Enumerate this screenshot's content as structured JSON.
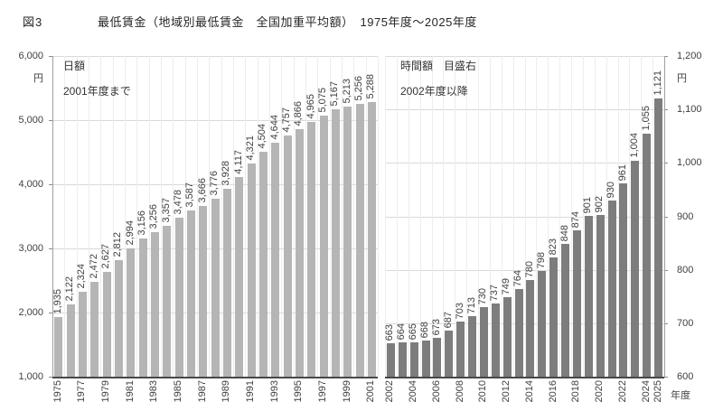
{
  "figure": {
    "fig_label": "図3",
    "title": "最低賃金（地域別最低賃金　全国加重平均額）　1975年度～2025年度",
    "unit_label": "円",
    "x_axis_title": "年度"
  },
  "chart_data": [
    {
      "type": "bar",
      "series_name": "日額（2001年度まで）",
      "legend": [
        "日額",
        "2001年度まで"
      ],
      "axis_side": "left",
      "ylabel": "円",
      "ylim": [
        1000,
        6000
      ],
      "ytick_step": 1000,
      "bar_color": "#b5b5b5",
      "grid": true,
      "years": [
        1975,
        1976,
        1977,
        1978,
        1979,
        1980,
        1981,
        1982,
        1983,
        1984,
        1985,
        1986,
        1987,
        1988,
        1989,
        1990,
        1991,
        1992,
        1993,
        1994,
        1995,
        1996,
        1997,
        1998,
        1999,
        2000,
        2001
      ],
      "values": [
        1935,
        2122,
        2324,
        2472,
        2627,
        2812,
        2994,
        3156,
        3256,
        3357,
        3478,
        3587,
        3666,
        3776,
        3928,
        4117,
        4321,
        4504,
        4644,
        4757,
        4866,
        4965,
        5075,
        5167,
        5213,
        5256,
        5288
      ],
      "xticks": [
        1975,
        1977,
        1979,
        1981,
        1983,
        1985,
        1987,
        1989,
        1991,
        1993,
        1995,
        1997,
        1999,
        2001
      ]
    },
    {
      "type": "bar",
      "series_name": "時間額（2002年度以降・目盛右）",
      "legend": [
        "時間額　目盛右",
        "2002年度以降"
      ],
      "axis_side": "right",
      "ylabel": "円",
      "ylim": [
        600,
        1200
      ],
      "ytick_step": 100,
      "bar_color": "#7d7d7d",
      "grid": true,
      "years": [
        2002,
        2003,
        2004,
        2005,
        2006,
        2007,
        2008,
        2009,
        2010,
        2011,
        2012,
        2013,
        2014,
        2015,
        2016,
        2017,
        2018,
        2019,
        2020,
        2021,
        2022,
        2023,
        2024,
        2025
      ],
      "values": [
        663,
        664,
        665,
        668,
        673,
        687,
        703,
        713,
        730,
        737,
        749,
        764,
        780,
        798,
        823,
        848,
        874,
        901,
        902,
        930,
        961,
        1004,
        1055,
        1121
      ],
      "xticks": [
        2002,
        2004,
        2006,
        2008,
        2010,
        2012,
        2014,
        2016,
        2018,
        2020,
        2022,
        2024,
        2025
      ]
    }
  ]
}
